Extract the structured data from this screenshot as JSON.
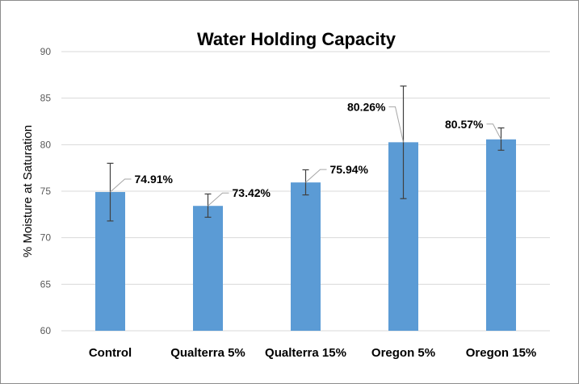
{
  "chart_data": {
    "type": "bar",
    "title": "Water Holding Capacity",
    "xlabel": "",
    "ylabel": "% Moisture at Saturation",
    "ylim": [
      60,
      90
    ],
    "yticks": [
      "60",
      "65",
      "70",
      "75",
      "80",
      "85",
      "90"
    ],
    "grid": true,
    "legend": "none",
    "categories": [
      "Control",
      "Qualterra 5%",
      "Qualterra 15%",
      "Oregon 5%",
      "Oregon 15%"
    ],
    "values": [
      74.91,
      73.42,
      75.94,
      80.26,
      80.57
    ],
    "error_low": [
      71.8,
      72.2,
      74.6,
      74.2,
      79.4
    ],
    "error_high": [
      78.0,
      74.7,
      77.3,
      86.3,
      81.8
    ],
    "data_labels": [
      "74.91%",
      "73.42%",
      "75.94%",
      "80.26%",
      "80.57%"
    ],
    "colors": {
      "bar": "#5b9bd5",
      "grid": "#d9d9d9",
      "error_bar": "#404040",
      "leader": "#a6a6a6"
    }
  }
}
